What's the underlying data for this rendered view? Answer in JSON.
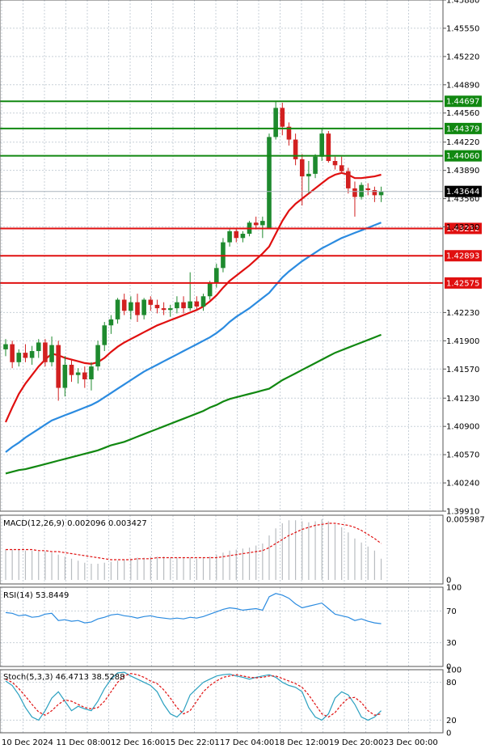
{
  "chart_data": [
    {
      "type": "candlestick",
      "pane": "price",
      "ylim": [
        1.3991,
        1.4588
      ],
      "price_labels": [
        "1.45880",
        "1.45550",
        "1.45220",
        "1.44890",
        "1.44560",
        "1.44220",
        "1.43890",
        "1.43560",
        "1.43230",
        "1.42230",
        "1.41900",
        "1.41570",
        "1.41230",
        "1.40900",
        "1.40570",
        "1.40240",
        "1.39910"
      ],
      "time_labels": [
        "10 Dec 2024",
        "11 Dec 08:00",
        "12 Dec 16:00",
        "15 Dec 22:01",
        "17 Dec 04:00",
        "18 Dec 12:00",
        "19 Dec 20:00",
        "23 Dec 00:00"
      ],
      "current_price": "1.43644",
      "levels": [
        {
          "label": "1.44697",
          "value": 1.44697,
          "color": "#118811"
        },
        {
          "label": "1.44379",
          "value": 1.44379,
          "color": "#118811"
        },
        {
          "label": "1.44060",
          "value": 1.4406,
          "color": "#118811"
        },
        {
          "label": "1.43212",
          "value": 1.43212,
          "color": "#e01010"
        },
        {
          "label": "1.42893",
          "value": 1.42893,
          "color": "#e01010"
        },
        {
          "label": "1.42575",
          "value": 1.42575,
          "color": "#e01010"
        }
      ],
      "colors": {
        "bull": "#1e8a2e",
        "bear": "#d22020",
        "ma_fast": "#e01010",
        "ma_mid": "#2b8be0",
        "ma_slow": "#118811",
        "grid": "#c8d0d8"
      },
      "candles": [
        [
          1.418,
          1.4192,
          1.4172,
          1.4186
        ],
        [
          1.4186,
          1.419,
          1.4158,
          1.4165
        ],
        [
          1.4165,
          1.418,
          1.416,
          1.4176
        ],
        [
          1.4176,
          1.4186,
          1.4165,
          1.417
        ],
        [
          1.417,
          1.4184,
          1.4162,
          1.4178
        ],
        [
          1.4178,
          1.4192,
          1.417,
          1.4188
        ],
        [
          1.4188,
          1.4192,
          1.416,
          1.4165
        ],
        [
          1.4165,
          1.4195,
          1.416,
          1.4185
        ],
        [
          1.4185,
          1.419,
          1.412,
          1.4135
        ],
        [
          1.4135,
          1.4172,
          1.4125,
          1.4162
        ],
        [
          1.4162,
          1.4168,
          1.4142,
          1.415
        ],
        [
          1.415,
          1.4158,
          1.414,
          1.4153
        ],
        [
          1.4153,
          1.416,
          1.4135,
          1.4145
        ],
        [
          1.4145,
          1.4165,
          1.4132,
          1.416
        ],
        [
          1.416,
          1.419,
          1.4155,
          1.4185
        ],
        [
          1.4185,
          1.4212,
          1.4178,
          1.4208
        ],
        [
          1.4208,
          1.422,
          1.4198,
          1.4215
        ],
        [
          1.4215,
          1.424,
          1.421,
          1.4238
        ],
        [
          1.4238,
          1.4245,
          1.422,
          1.4225
        ],
        [
          1.4225,
          1.4242,
          1.4215,
          1.4235
        ],
        [
          1.4235,
          1.4245,
          1.4212,
          1.422
        ],
        [
          1.422,
          1.424,
          1.4215,
          1.4238
        ],
        [
          1.4238,
          1.4242,
          1.4225,
          1.4232
        ],
        [
          1.4232,
          1.4238,
          1.4222,
          1.4228
        ],
        [
          1.4228,
          1.4235,
          1.422,
          1.4226
        ],
        [
          1.4226,
          1.4232,
          1.4218,
          1.4228
        ],
        [
          1.4228,
          1.4242,
          1.4222,
          1.4235
        ],
        [
          1.4235,
          1.4242,
          1.4222,
          1.4228
        ],
        [
          1.4228,
          1.427,
          1.4225,
          1.4236
        ],
        [
          1.4236,
          1.4242,
          1.4225,
          1.423
        ],
        [
          1.423,
          1.4245,
          1.4225,
          1.4242
        ],
        [
          1.4242,
          1.426,
          1.4238,
          1.4258
        ],
        [
          1.4258,
          1.428,
          1.4252,
          1.4275
        ],
        [
          1.4275,
          1.431,
          1.427,
          1.4305
        ],
        [
          1.4305,
          1.4322,
          1.43,
          1.4318
        ],
        [
          1.4318,
          1.4322,
          1.4305,
          1.431
        ],
        [
          1.431,
          1.4318,
          1.4305,
          1.4315
        ],
        [
          1.4315,
          1.433,
          1.4312,
          1.4328
        ],
        [
          1.4328,
          1.4335,
          1.432,
          1.4325
        ],
        [
          1.4325,
          1.4335,
          1.431,
          1.433
        ],
        [
          1.4322,
          1.4432,
          1.4322,
          1.4428
        ],
        [
          1.4428,
          1.447,
          1.4425,
          1.4462
        ],
        [
          1.4462,
          1.4468,
          1.443,
          1.444
        ],
        [
          1.444,
          1.4445,
          1.4418,
          1.4425
        ],
        [
          1.4425,
          1.4432,
          1.4395,
          1.4402
        ],
        [
          1.4402,
          1.4408,
          1.4348,
          1.4382
        ],
        [
          1.4382,
          1.44,
          1.4362,
          1.4385
        ],
        [
          1.4385,
          1.4408,
          1.438,
          1.4405
        ],
        [
          1.4405,
          1.4438,
          1.44,
          1.4432
        ],
        [
          1.4432,
          1.4435,
          1.4398,
          1.44
        ],
        [
          1.44,
          1.4405,
          1.439,
          1.4395
        ],
        [
          1.4395,
          1.4405,
          1.4385,
          1.4388
        ],
        [
          1.4388,
          1.4392,
          1.4362,
          1.4368
        ],
        [
          1.4368,
          1.4376,
          1.4335,
          1.4358
        ],
        [
          1.4358,
          1.4375,
          1.4355,
          1.4372
        ],
        [
          1.4368,
          1.4374,
          1.436,
          1.4366
        ],
        [
          1.4366,
          1.437,
          1.4352,
          1.436
        ],
        [
          1.436,
          1.437,
          1.4352,
          1.4364
        ]
      ],
      "ma_fast": [
        1.4095,
        1.4112,
        1.4128,
        1.414,
        1.415,
        1.416,
        1.4168,
        1.4175,
        1.4173,
        1.417,
        1.4168,
        1.4166,
        1.4164,
        1.4163,
        1.4165,
        1.417,
        1.4177,
        1.4183,
        1.4188,
        1.4192,
        1.4196,
        1.42,
        1.4204,
        1.4208,
        1.4211,
        1.4214,
        1.4217,
        1.422,
        1.4223,
        1.4226,
        1.423,
        1.4236,
        1.4243,
        1.4252,
        1.426,
        1.4266,
        1.4272,
        1.4278,
        1.4285,
        1.4292,
        1.43,
        1.4315,
        1.433,
        1.4342,
        1.435,
        1.4356,
        1.4362,
        1.4368,
        1.4374,
        1.438,
        1.4384,
        1.4386,
        1.4384,
        1.438,
        1.438,
        1.4381,
        1.4382,
        1.4384
      ],
      "ma_mid": [
        1.406,
        1.4066,
        1.4071,
        1.4077,
        1.4082,
        1.4087,
        1.4092,
        1.4097,
        1.41,
        1.4103,
        1.4106,
        1.4109,
        1.4112,
        1.4115,
        1.4119,
        1.4124,
        1.4129,
        1.4134,
        1.4139,
        1.4144,
        1.4149,
        1.4154,
        1.4158,
        1.4162,
        1.4166,
        1.417,
        1.4174,
        1.4178,
        1.4182,
        1.4186,
        1.419,
        1.4194,
        1.4199,
        1.4205,
        1.4212,
        1.4218,
        1.4223,
        1.4228,
        1.4234,
        1.424,
        1.4246,
        1.4255,
        1.4264,
        1.4271,
        1.4277,
        1.4283,
        1.4288,
        1.4293,
        1.4298,
        1.4302,
        1.4306,
        1.431,
        1.4313,
        1.4316,
        1.4319,
        1.4322,
        1.4325,
        1.4328
      ],
      "ma_slow": [
        1.4035,
        1.4037,
        1.4039,
        1.404,
        1.4042,
        1.4044,
        1.4046,
        1.4048,
        1.405,
        1.4052,
        1.4054,
        1.4056,
        1.4058,
        1.406,
        1.4062,
        1.4065,
        1.4068,
        1.407,
        1.4072,
        1.4075,
        1.4078,
        1.4081,
        1.4084,
        1.4087,
        1.409,
        1.4093,
        1.4096,
        1.4099,
        1.4102,
        1.4105,
        1.4108,
        1.4112,
        1.4115,
        1.4119,
        1.4122,
        1.4124,
        1.4126,
        1.4128,
        1.413,
        1.4132,
        1.4134,
        1.4139,
        1.4144,
        1.4148,
        1.4152,
        1.4156,
        1.416,
        1.4164,
        1.4168,
        1.4172,
        1.4176,
        1.4179,
        1.4182,
        1.4185,
        1.4188,
        1.4191,
        1.4194,
        1.4197
      ]
    },
    {
      "type": "bar",
      "pane": "macd",
      "title": "MACD(12,26,9) 0.002096 0.003427",
      "y_labels": [
        "0.005987",
        "0"
      ],
      "ylim": [
        -0.0004,
        0.0064
      ],
      "histogram": [
        0.003,
        0.003,
        0.003,
        0.0029,
        0.0029,
        0.0028,
        0.0028,
        0.0027,
        0.0025,
        0.0023,
        0.0021,
        0.0019,
        0.0017,
        0.0016,
        0.0016,
        0.0017,
        0.0018,
        0.0019,
        0.002,
        0.0021,
        0.0022,
        0.0022,
        0.0023,
        0.0023,
        0.0023,
        0.0022,
        0.0022,
        0.0022,
        0.0022,
        0.0021,
        0.0022,
        0.0023,
        0.0025,
        0.0027,
        0.0029,
        0.003,
        0.0031,
        0.0032,
        0.0034,
        0.0036,
        0.0044,
        0.0051,
        0.0056,
        0.0059,
        0.0059,
        0.0058,
        0.0057,
        0.0058,
        0.006,
        0.0058,
        0.0055,
        0.0052,
        0.0047,
        0.0041,
        0.0037,
        0.0033,
        0.0029,
        0.0021
      ],
      "signal": [
        0.003,
        0.003,
        0.003,
        0.003,
        0.003,
        0.0029,
        0.0029,
        0.0028,
        0.0028,
        0.0027,
        0.0026,
        0.0025,
        0.0024,
        0.0023,
        0.0022,
        0.0021,
        0.002,
        0.002,
        0.002,
        0.002,
        0.0021,
        0.0021,
        0.0021,
        0.0022,
        0.0022,
        0.0022,
        0.0022,
        0.0022,
        0.0022,
        0.0022,
        0.0022,
        0.0022,
        0.0022,
        0.0023,
        0.0024,
        0.0025,
        0.0026,
        0.0027,
        0.0028,
        0.0029,
        0.0032,
        0.0036,
        0.004,
        0.0044,
        0.0047,
        0.005,
        0.0052,
        0.0054,
        0.0055,
        0.0056,
        0.0056,
        0.0055,
        0.0054,
        0.0052,
        0.0049,
        0.0045,
        0.0041,
        0.0036
      ]
    },
    {
      "type": "line",
      "pane": "rsi",
      "title": "RSI(14) 53.8449",
      "y_labels": [
        "100",
        "70",
        "30",
        "0"
      ],
      "ylim": [
        0,
        100
      ],
      "values": [
        68,
        67,
        64,
        65,
        62,
        63,
        66,
        67,
        58,
        59,
        57,
        58,
        55,
        56,
        60,
        62,
        65,
        66,
        64,
        63,
        61,
        63,
        64,
        62,
        61,
        60,
        61,
        60,
        62,
        61,
        63,
        66,
        69,
        72,
        74,
        73,
        71,
        72,
        73,
        71,
        88,
        92,
        90,
        86,
        79,
        74,
        76,
        78,
        80,
        73,
        66,
        64,
        62,
        58,
        60,
        57,
        55,
        54
      ]
    },
    {
      "type": "line",
      "pane": "stoch",
      "title": "Stoch(5,3,3) 46.4713 38.5288",
      "y_labels": [
        "100",
        "80",
        "20",
        "0"
      ],
      "ylim": [
        0,
        100
      ],
      "main": [
        82,
        75,
        60,
        40,
        25,
        20,
        35,
        55,
        65,
        50,
        35,
        42,
        38,
        35,
        50,
        70,
        85,
        95,
        96,
        90,
        85,
        80,
        75,
        65,
        45,
        30,
        25,
        35,
        60,
        70,
        80,
        85,
        90,
        92,
        93,
        90,
        88,
        85,
        88,
        90,
        92,
        88,
        80,
        75,
        72,
        65,
        40,
        25,
        20,
        30,
        55,
        65,
        60,
        45,
        25,
        20,
        25,
        35
      ],
      "signal": [
        85,
        80,
        70,
        58,
        45,
        33,
        28,
        35,
        45,
        52,
        50,
        45,
        40,
        38,
        40,
        50,
        65,
        80,
        90,
        94,
        92,
        88,
        82,
        78,
        68,
        55,
        40,
        30,
        35,
        50,
        65,
        75,
        82,
        88,
        90,
        92,
        90,
        88,
        87,
        88,
        90,
        90,
        86,
        82,
        78,
        72,
        60,
        45,
        30,
        25,
        32,
        45,
        55,
        56,
        48,
        35,
        28,
        30
      ]
    }
  ]
}
